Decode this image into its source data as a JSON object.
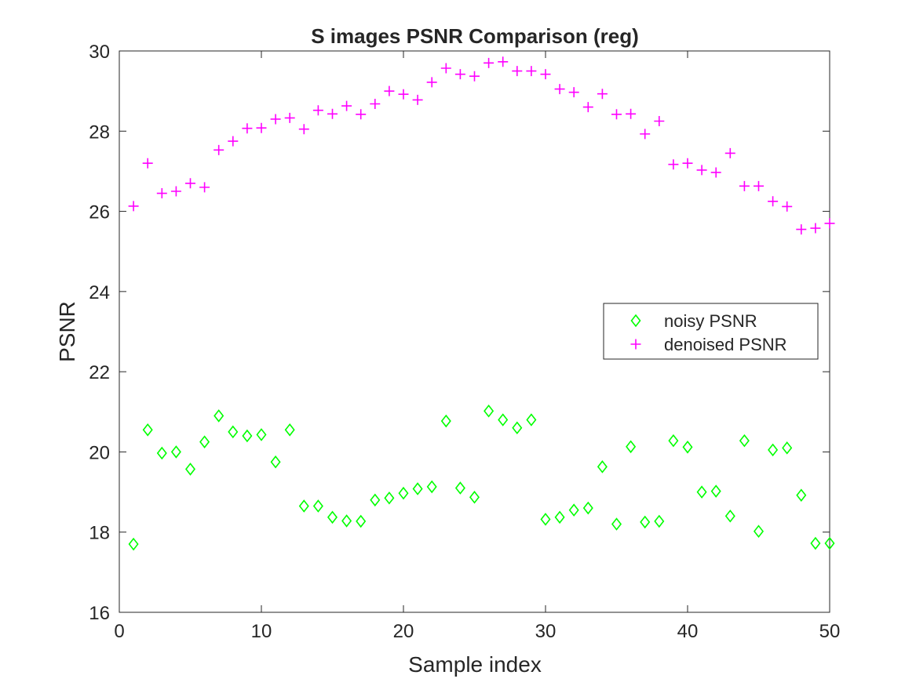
{
  "chart_data": {
    "type": "scatter",
    "title": "S images PSNR Comparison (reg)",
    "xlabel": "Sample index",
    "ylabel": "PSNR",
    "xlim": [
      0,
      50
    ],
    "ylim": [
      16,
      30
    ],
    "xticks": [
      0,
      10,
      20,
      30,
      40,
      50
    ],
    "yticks": [
      16,
      18,
      20,
      22,
      24,
      26,
      28,
      30
    ],
    "grid": false,
    "legend_position": "right",
    "x": [
      1,
      2,
      3,
      4,
      5,
      6,
      7,
      8,
      9,
      10,
      11,
      12,
      13,
      14,
      15,
      16,
      17,
      18,
      19,
      20,
      21,
      22,
      23,
      24,
      25,
      26,
      27,
      28,
      29,
      30,
      31,
      32,
      33,
      34,
      35,
      36,
      37,
      38,
      39,
      40,
      41,
      42,
      43,
      44,
      45,
      46,
      47,
      48,
      49,
      50
    ],
    "series": [
      {
        "name": "noisy PSNR",
        "marker": "diamond",
        "color": "#00ff00",
        "values": [
          17.7,
          20.55,
          19.97,
          20.0,
          19.57,
          20.25,
          20.9,
          20.5,
          20.4,
          20.43,
          19.75,
          20.55,
          18.65,
          18.65,
          18.37,
          18.28,
          18.27,
          18.8,
          18.85,
          18.97,
          19.08,
          19.13,
          20.77,
          19.1,
          18.87,
          21.02,
          20.8,
          20.6,
          20.8,
          18.32,
          18.37,
          18.55,
          18.6,
          19.63,
          18.2,
          20.13,
          18.25,
          18.27,
          20.28,
          20.12,
          19.0,
          19.02,
          18.4,
          20.28,
          18.02,
          20.05,
          20.1,
          18.92,
          17.72,
          17.72
        ]
      },
      {
        "name": "denoised PSNR",
        "marker": "plus",
        "color": "#ff00ff",
        "values": [
          26.13,
          27.2,
          26.45,
          26.5,
          26.7,
          26.6,
          27.53,
          27.75,
          28.07,
          28.08,
          28.3,
          28.33,
          28.05,
          28.52,
          28.43,
          28.63,
          28.42,
          28.68,
          29.0,
          28.92,
          28.78,
          29.22,
          29.57,
          29.42,
          29.37,
          29.7,
          29.73,
          29.5,
          29.5,
          29.42,
          29.05,
          28.97,
          28.6,
          28.93,
          28.42,
          28.43,
          27.93,
          28.25,
          27.17,
          27.2,
          27.03,
          26.97,
          27.45,
          26.63,
          26.63,
          26.25,
          26.12,
          25.55,
          25.58,
          25.7
        ]
      }
    ]
  }
}
